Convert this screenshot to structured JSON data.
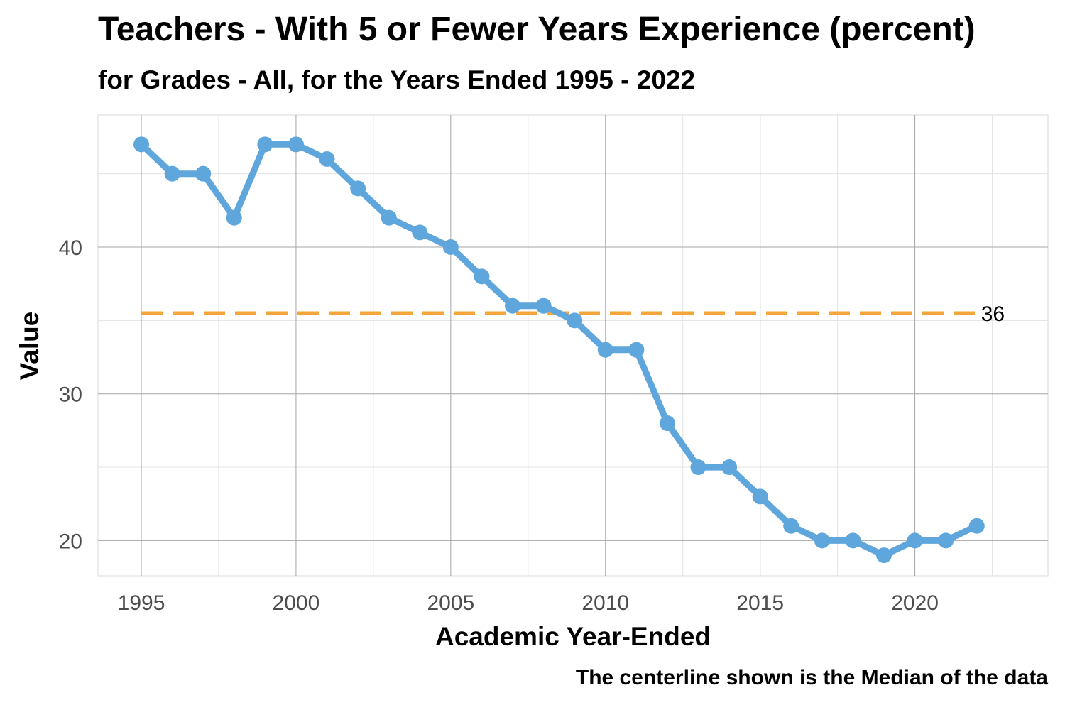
{
  "chart_data": {
    "type": "line",
    "title": "Teachers - With 5 or Fewer Years Experience (percent)",
    "subtitle": "for Grades - All, for the Years Ended 1995  -  2022",
    "xlabel": "Academic Year-Ended",
    "ylabel": "Value",
    "caption": "The centerline shown is the Median of the data",
    "xlim": [
      1993.6,
      2024.3
    ],
    "ylim": [
      17.6,
      49.0
    ],
    "x_ticks": [
      1995,
      2000,
      2005,
      2010,
      2015,
      2020
    ],
    "y_ticks": [
      20,
      30,
      40
    ],
    "grid": true,
    "series": [
      {
        "x": [
          1995,
          1996,
          1997,
          1998,
          1999,
          2000,
          2001,
          2002,
          2003,
          2004,
          2005,
          2006,
          2007,
          2008,
          2009,
          2010,
          2011,
          2012,
          2013,
          2014,
          2015,
          2016,
          2017,
          2018,
          2019,
          2020,
          2021,
          2022
        ],
        "values": [
          47,
          45,
          45,
          42,
          47,
          47,
          46,
          44,
          42,
          41,
          40,
          38,
          36,
          36,
          35,
          33,
          33,
          28,
          25,
          25,
          23,
          21,
          20,
          20,
          19,
          20,
          20,
          21
        ],
        "color": "#5fa6dc"
      }
    ],
    "median": {
      "value": 35.5,
      "label": "36",
      "color": "#f4a63a"
    }
  }
}
